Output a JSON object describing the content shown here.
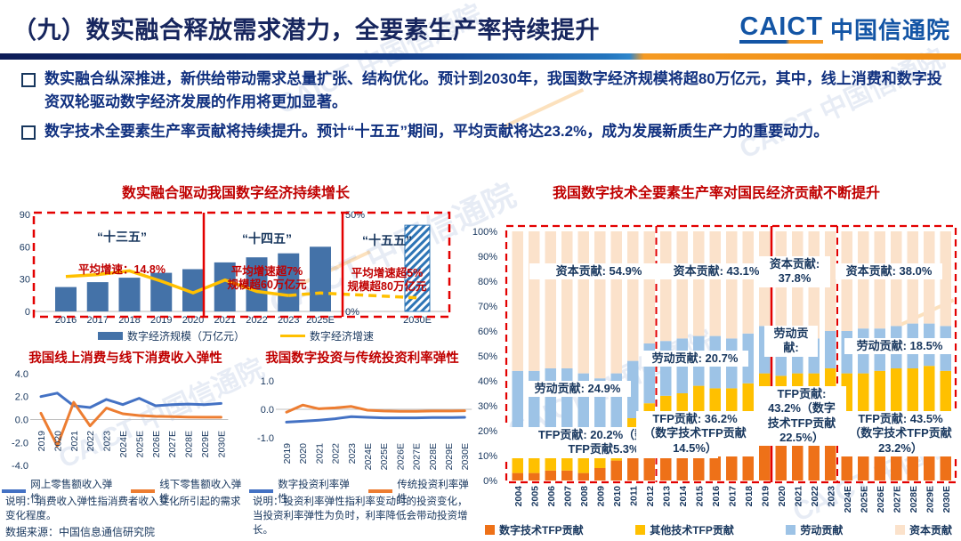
{
  "header": {
    "title": "（九）数实融合释放需求潜力，全要素生产率持续提升",
    "logo_caict": "CAICT",
    "logo_cn": "中国信通院"
  },
  "bullets": [
    "数实融合纵深推进，新供给带动需求总量扩张、结构优化。预计到2030年，我国数字经济规模将超80万亿元，其中，线上消费和数字投资双轮驱动数字经济发展的作用将更加显著。",
    "数字技术全要素生产率贡献将持续提升。预计“十五五”期间，平均贡献将达23.2%，成为发展新质生产力的重要动力。"
  ],
  "watermark": "CAICT 中国信通院",
  "notes": {
    "consumption": "说明：消费收入弹性指消费者收入变化所引起的需求变化程度。",
    "investment": "说明：投资利率弹性指利率变动时的投资变化，当投资利率弹性为负时，利率降低会带动投资增长。",
    "source": "数据来源：中国信息通信研究院"
  },
  "colors": {
    "bar_blue": "#4472a8",
    "hatch_blue": "#2e75b6",
    "line_yellow": "#ffc000",
    "line_blue": "#4472c4",
    "line_orange": "#ed7d31",
    "digital_tfp": "#ee7118",
    "other_tfp": "#ffc000",
    "labor": "#9dc3e6",
    "capital": "#fbe2cb",
    "red": "#e30000",
    "dark_blue": "#17365d",
    "title_red": "#c00000"
  },
  "chart_data": [
    {
      "id": "digital-economy-growth",
      "type": "bar+line",
      "title": "数实融合驱动我国数字经济持续增长",
      "categories": [
        "2016",
        "2017",
        "2018",
        "2019",
        "2020",
        "2021",
        "2022",
        "2023",
        "2025E",
        "2030E"
      ],
      "left_axis_ticks": [
        "0",
        "30",
        "60",
        "90"
      ],
      "right_axis_ticks": [
        "50%",
        "0%"
      ],
      "bar_series": {
        "name": "数字经济规模（万亿元）",
        "values": [
          22.6,
          27.2,
          31.3,
          35.8,
          39.2,
          45.5,
          50.2,
          53.9,
          60.0
        ]
      },
      "forecast_bar": {
        "category": "2030E",
        "value": 80,
        "style": "hatched"
      },
      "line_series": {
        "name": "数字经济增速",
        "axis": "right",
        "solid_until_index": 7,
        "values": [
          18.0,
          19.0,
          20.9,
          15.6,
          9.6,
          16.2,
          10.3,
          8.2,
          9.5,
          7.0
        ]
      },
      "annotations": [
        {
          "head": "“十三五”",
          "body": "平均增速：14.8%"
        },
        {
          "head": "“十四五”",
          "body": "平均增速超7%\n规模超60万亿元"
        },
        {
          "head": "“十五五”",
          "body": "平均增速超5%\n规模超80万亿元"
        }
      ]
    },
    {
      "id": "consumption-elasticity",
      "type": "line",
      "title": "我国线上消费与线下消费收入弹性",
      "y_ticks": [
        "4.0",
        "2.0",
        "0.0",
        "-2.0",
        "-4.0"
      ],
      "ylim": [
        -4.0,
        4.0
      ],
      "categories": [
        "2019",
        "2020",
        "2021",
        "2022",
        "2023",
        "2024E",
        "2025E",
        "2026E",
        "2027E",
        "2028E",
        "2029E",
        "2030E"
      ],
      "series": [
        {
          "name": "网上零售额收入弹性",
          "color": "#4472c4",
          "values": [
            2.0,
            2.3,
            1.2,
            1.05,
            1.75,
            1.3,
            1.85,
            1.2,
            1.3,
            1.35,
            1.3,
            1.4
          ]
        },
        {
          "name": "线下零售额收入弹性",
          "color": "#ed7d31",
          "values": [
            0.55,
            -2.3,
            1.5,
            -0.55,
            1.0,
            0.5,
            0.35,
            0.28,
            0.25,
            0.22,
            0.2,
            0.2
          ]
        }
      ]
    },
    {
      "id": "investment-elasticity",
      "type": "line",
      "title": "我国数字投资与传统投资利率弹性",
      "y_ticks": [
        "1.0",
        "0.0",
        "-1.0"
      ],
      "ylim": [
        -1.0,
        1.0
      ],
      "categories": [
        "2019",
        "2020",
        "2021",
        "2022",
        "2023",
        "2024E",
        "2025E",
        "2026E",
        "2027E",
        "2028E",
        "2029E",
        "2030E"
      ],
      "series": [
        {
          "name": "数字投资利率弹性",
          "color": "#4472c4",
          "values": [
            -0.45,
            -0.42,
            -0.38,
            -0.33,
            -0.26,
            -0.28,
            -0.3,
            -0.3,
            -0.3,
            -0.29,
            -0.29,
            -0.28
          ]
        },
        {
          "name": "传统投资利率弹性",
          "color": "#ed7d31",
          "values": [
            -0.1,
            0.15,
            0.02,
            0.05,
            0.1,
            -0.03,
            -0.06,
            -0.07,
            -0.07,
            -0.06,
            -0.06,
            -0.05
          ]
        }
      ]
    },
    {
      "id": "tfp-contribution",
      "type": "stacked-bar",
      "title": "我国数字技术全要素生产率对国民经济贡献不断提升",
      "y_ticks": [
        "100%",
        "90%",
        "80%",
        "70%",
        "60%",
        "50%",
        "40%",
        "30%",
        "20%",
        "10%",
        "0%"
      ],
      "ylim": [
        0,
        100
      ],
      "categories": [
        "2004",
        "2005",
        "2006",
        "2007",
        "2008",
        "2009",
        "2010",
        "2011",
        "2012",
        "2013",
        "2014",
        "2015",
        "2016",
        "2017",
        "2018",
        "2019",
        "2020",
        "2021",
        "2022",
        "2023",
        "2024E",
        "2025E",
        "2026E",
        "2027E",
        "2028E",
        "2029E",
        "2030E"
      ],
      "period_dividers": [
        {
          "after_category": "2012",
          "style": "dashed"
        },
        {
          "after_category": "2019",
          "style": "solid"
        },
        {
          "after_category": "2023",
          "style": "dashed"
        }
      ],
      "series": [
        {
          "name": "数字技术TFP贡献",
          "color": "#ee7118",
          "values": [
            3,
            3,
            4,
            4,
            3,
            5,
            8,
            10,
            9,
            12,
            14,
            15,
            15,
            17,
            20,
            24,
            22,
            21,
            23,
            24,
            21,
            22,
            23,
            23,
            23,
            24,
            23
          ]
        },
        {
          "name": "其他技术TFP贡献",
          "color": "#ffc000",
          "values": [
            16,
            14,
            15,
            15,
            15,
            14,
            13,
            15,
            22,
            22,
            21,
            23,
            22,
            20,
            19,
            19,
            20,
            22,
            20,
            21,
            22,
            21,
            21,
            22,
            22,
            22,
            21
          ]
        },
        {
          "name": "劳动贡献",
          "color": "#9dc3e6",
          "values": [
            25,
            27,
            26,
            26,
            25,
            22,
            22,
            23,
            24,
            22,
            22,
            20,
            21,
            20,
            20,
            19,
            12,
            14,
            14,
            15,
            17,
            18,
            17,
            17,
            18,
            17,
            18
          ]
        },
        {
          "name": "资本贡献",
          "color": "#fbe2cb",
          "values": [
            56,
            56,
            55,
            55,
            57,
            59,
            57,
            52,
            45,
            44,
            43,
            42,
            42,
            43,
            41,
            38,
            46,
            43,
            43,
            40,
            40,
            39,
            39,
            38,
            37,
            37,
            38
          ]
        }
      ],
      "annotations": {
        "capital": [
          "资本贡献: 54.9%",
          "资本贡献: 43.1%",
          "资本贡献:\n37.8%",
          "资本贡献: 38.0%"
        ],
        "labor": [
          "劳动贡献: 24.9%",
          "劳动贡献: 20.7%",
          "劳动贡\n献:",
          "劳动贡献: 18.5%"
        ],
        "tfp": [
          "TFP贡献: 20.2%（数字技术\nTFP贡献5.3%）",
          "TFP贡献: 36.2%\n（数字技术TFP贡献\n14.5%）",
          "TFP贡献:\n43.2%（数字\n技术TFP贡献\n22.5%）",
          "TFP贡献: 43.5%\n（数字技术TFP贡献\n23.2%）"
        ]
      }
    }
  ]
}
